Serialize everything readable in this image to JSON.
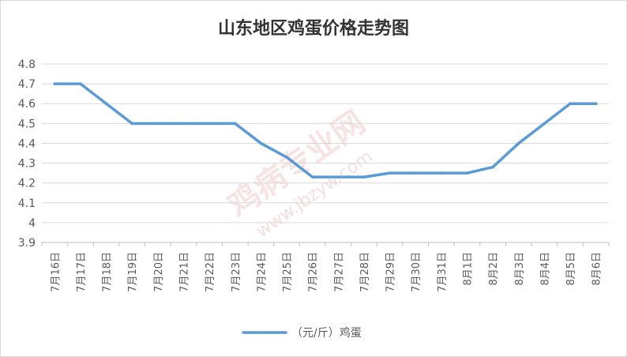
{
  "colors": {
    "series": "#5b9bd5",
    "watermark": "#e8b3b3"
  },
  "watermark": {
    "text": "鸡病专业网",
    "url": "www.jbzyw.com"
  },
  "chart_data": {
    "type": "line",
    "title": "山东地区鸡蛋价格走势图",
    "xlabel": "",
    "ylabel": "",
    "ylim": [
      3.9,
      4.8
    ],
    "yticks": [
      3.9,
      4,
      4.1,
      4.2,
      4.3,
      4.4,
      4.5,
      4.6,
      4.7,
      4.8
    ],
    "grid": true,
    "legend": "bottom",
    "categories": [
      "7月16日",
      "7月17日",
      "7月18日",
      "7月19日",
      "7月20日",
      "7月21日",
      "7月22日",
      "7月23日",
      "7月24日",
      "7月25日",
      "7月26日",
      "7月27日",
      "7月28日",
      "7月29日",
      "7月30日",
      "7月31日",
      "8月1日",
      "8月2日",
      "8月3日",
      "8月4日",
      "8月5日",
      "8月6日"
    ],
    "series": [
      {
        "name": "（元/斤）鸡蛋",
        "values": [
          4.7,
          4.7,
          4.6,
          4.5,
          4.5,
          4.5,
          4.5,
          4.5,
          4.4,
          4.33,
          4.23,
          4.23,
          4.23,
          4.25,
          4.25,
          4.25,
          4.25,
          4.28,
          4.4,
          4.5,
          4.6,
          4.6
        ]
      }
    ]
  }
}
